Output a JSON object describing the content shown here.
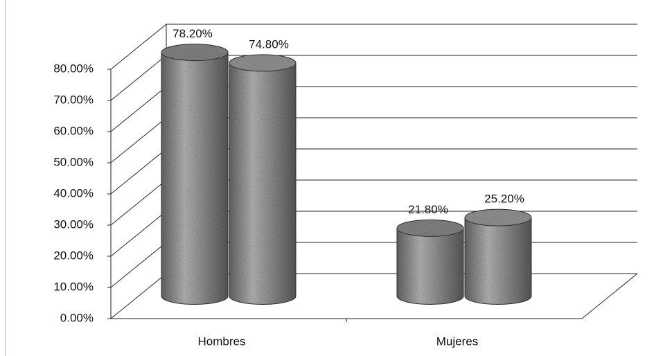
{
  "chart_data": {
    "type": "cylinder",
    "categories": [
      "Hombres",
      "Mujeres"
    ],
    "series": [
      {
        "color": "#8a8a8a",
        "values": [
          78.2,
          21.8
        ],
        "value_labels": [
          "78.20%",
          "21.80%"
        ]
      },
      {
        "color": "#9a9a9a",
        "values": [
          74.8,
          25.2
        ],
        "value_labels": [
          "74.80%",
          "25.20%"
        ]
      }
    ],
    "ylim": [
      0,
      80
    ],
    "yticks": [
      {
        "value": 0,
        "label": "0.00%"
      },
      {
        "value": 10,
        "label": "10.00%"
      },
      {
        "value": 20,
        "label": "20.00%"
      },
      {
        "value": 30,
        "label": "30.00%"
      },
      {
        "value": 40,
        "label": "40.00%"
      },
      {
        "value": 50,
        "label": "50.00%"
      },
      {
        "value": 60,
        "label": "60.00%"
      },
      {
        "value": 70,
        "label": "70.00%"
      },
      {
        "value": 80,
        "label": "80.00%"
      }
    ],
    "grid": true
  }
}
